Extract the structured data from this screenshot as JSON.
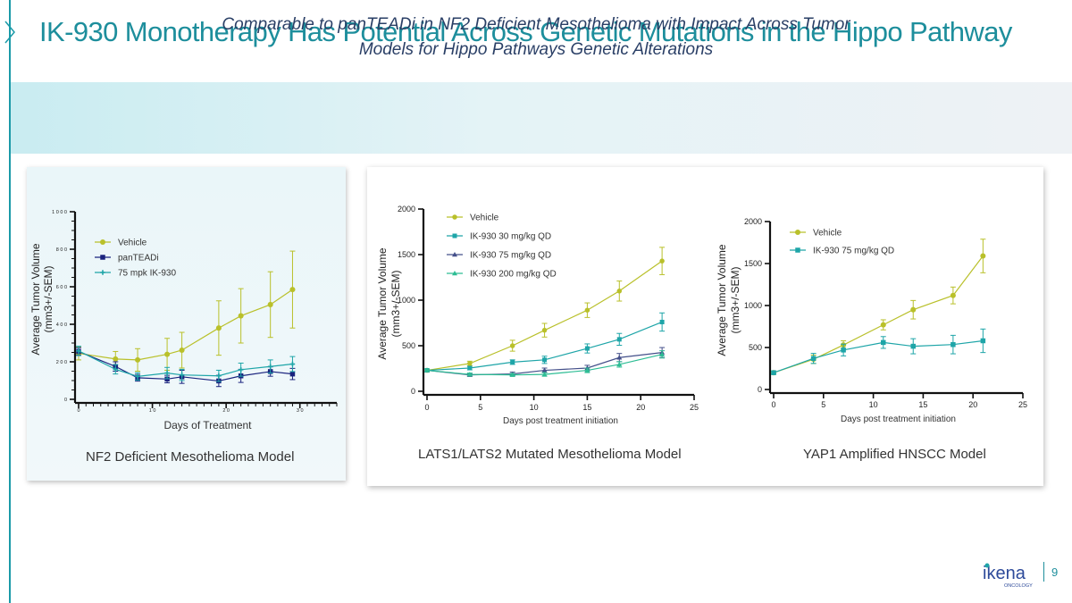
{
  "slide": {
    "title": "IK-930 Monotherapy Has Potential Across Genetic Mutations in the Hippo Pathway",
    "banner_line1": "Comparable to panTEADi in NF2 Deficient Mesothelioma with Impact Across Tumor",
    "banner_line2": "Models for Hippo Pathways Genetic Alterations",
    "page_number": "9",
    "logo_name": "ikena",
    "logo_sub": "ONCOLOGY"
  },
  "colors": {
    "accent": "#1d8e9c",
    "vehicle": "#b9c02a",
    "pantead": "#1a237e",
    "ik930": "#1ea5a8",
    "ik75": "#44508a",
    "ik200": "#2dbd94"
  },
  "chart_data": [
    {
      "type": "line",
      "model_label": "NF2 Deficient Mesothelioma Model",
      "xlabel": "Days of Treatment",
      "ylabel_line1": "Average  Tumor Volume",
      "ylabel_line2": "(mm3+/-SEM)",
      "xlim": [
        0,
        35
      ],
      "ylim": [
        0,
        1000
      ],
      "xticks": [
        0,
        10,
        20,
        30
      ],
      "xtick_labels": [
        "0",
        "1 0",
        "2 0",
        "3 0"
      ],
      "yticks": [
        0,
        200,
        400,
        600,
        800,
        1000
      ],
      "ytick_labels": [
        "0",
        "2 0 0",
        "4 0 0",
        "6 0 0",
        "8 0 0",
        "1 0 0 0"
      ],
      "legend": "top-left",
      "series": [
        {
          "name": "Vehicle",
          "color": "#b9c02a",
          "marker": "circle",
          "x": [
            0,
            5,
            8,
            12,
            14,
            19,
            22,
            26,
            29
          ],
          "y": [
            245,
            215,
            210,
            240,
            262,
            380,
            445,
            505,
            585
          ],
          "err": [
            35,
            40,
            60,
            85,
            95,
            145,
            145,
            175,
            205
          ]
        },
        {
          "name": "panTEADi",
          "color": "#1a237e",
          "marker": "square",
          "x": [
            0,
            5,
            8,
            12,
            14,
            19,
            22,
            26,
            29
          ],
          "y": [
            255,
            175,
            115,
            108,
            120,
            98,
            125,
            148,
            135
          ],
          "err": [
            20,
            25,
            18,
            20,
            35,
            30,
            35,
            25,
            30
          ]
        },
        {
          "name": "75 mpk IK-930",
          "color": "#1ea5a8",
          "marker": "cross",
          "x": [
            0,
            5,
            8,
            12,
            14,
            19,
            22,
            26,
            29
          ],
          "y": [
            258,
            160,
            122,
            140,
            130,
            125,
            158,
            175,
            188
          ],
          "err": [
            25,
            25,
            20,
            30,
            30,
            30,
            35,
            35,
            40
          ]
        }
      ]
    },
    {
      "type": "line",
      "model_label": "LATS1/LATS2 Mutated Mesothelioma Model",
      "xlabel": "Days post treatment initiation",
      "ylabel_line1": "Average  Tumor Volume",
      "ylabel_line2": "(mm3+/-SEM)",
      "xlim": [
        0,
        25
      ],
      "ylim": [
        0,
        2000
      ],
      "xticks": [
        0,
        5,
        10,
        15,
        20,
        25
      ],
      "xtick_labels": [
        "0",
        "5",
        "10",
        "15",
        "20",
        "25"
      ],
      "yticks": [
        0,
        500,
        1000,
        1500,
        2000
      ],
      "ytick_labels": [
        "0",
        "500",
        "1000",
        "1500",
        "2000"
      ],
      "legend": "top-left",
      "series": [
        {
          "name": "Vehicle",
          "color": "#b9c02a",
          "marker": "circle",
          "x": [
            0,
            4,
            8,
            11,
            15,
            18,
            22
          ],
          "y": [
            230,
            305,
            500,
            670,
            890,
            1100,
            1430
          ],
          "err": [
            15,
            25,
            60,
            75,
            80,
            110,
            150
          ]
        },
        {
          "name": "IK-930 30  mg/kg QD",
          "color": "#1ea5a8",
          "marker": "square",
          "x": [
            0,
            4,
            8,
            11,
            15,
            18,
            22
          ],
          "y": [
            230,
            255,
            320,
            345,
            470,
            570,
            760
          ],
          "err": [
            15,
            20,
            25,
            40,
            50,
            65,
            100
          ]
        },
        {
          "name": "IK-930 75  mg/kg QD",
          "color": "#44508a",
          "marker": "triangle",
          "x": [
            0,
            4,
            8,
            11,
            15,
            18,
            22
          ],
          "y": [
            230,
            180,
            190,
            230,
            255,
            370,
            425
          ],
          "err": [
            15,
            15,
            20,
            25,
            30,
            45,
            55
          ]
        },
        {
          "name": "IK-930 200  mg/kg QD",
          "color": "#2dbd94",
          "marker": "triangle",
          "x": [
            0,
            4,
            8,
            11,
            15,
            18,
            22
          ],
          "y": [
            230,
            185,
            180,
            185,
            230,
            295,
            405
          ],
          "err": [
            15,
            15,
            15,
            20,
            25,
            30,
            40
          ]
        }
      ]
    },
    {
      "type": "line",
      "model_label": "YAP1 Amplified HNSCC Model",
      "xlabel": "Days post treatment initiation",
      "ylabel_line1": "Average  Tumor Volume",
      "ylabel_line2": "(mm3+/-SEM)",
      "xlim": [
        0,
        25
      ],
      "ylim": [
        0,
        2000
      ],
      "xticks": [
        0,
        5,
        10,
        15,
        20,
        25
      ],
      "xtick_labels": [
        "0",
        "5",
        "10",
        "15",
        "20",
        "25"
      ],
      "yticks": [
        0,
        500,
        1000,
        1500,
        2000
      ],
      "ytick_labels": [
        "0",
        "500",
        "1000",
        "1500",
        "2000"
      ],
      "legend": "top-left",
      "series": [
        {
          "name": "Vehicle",
          "color": "#b9c02a",
          "marker": "circle",
          "x": [
            0,
            4,
            7,
            11,
            14,
            18,
            21
          ],
          "y": [
            200,
            360,
            530,
            770,
            950,
            1120,
            1590
          ],
          "err": [
            15,
            50,
            50,
            60,
            110,
            100,
            200
          ]
        },
        {
          "name": "IK-930 75 mg/kg QD",
          "color": "#1ea5a8",
          "marker": "square",
          "x": [
            0,
            4,
            7,
            11,
            14,
            18,
            21
          ],
          "y": [
            200,
            370,
            470,
            560,
            515,
            535,
            580
          ],
          "err": [
            15,
            60,
            70,
            70,
            90,
            110,
            140
          ]
        }
      ]
    }
  ]
}
